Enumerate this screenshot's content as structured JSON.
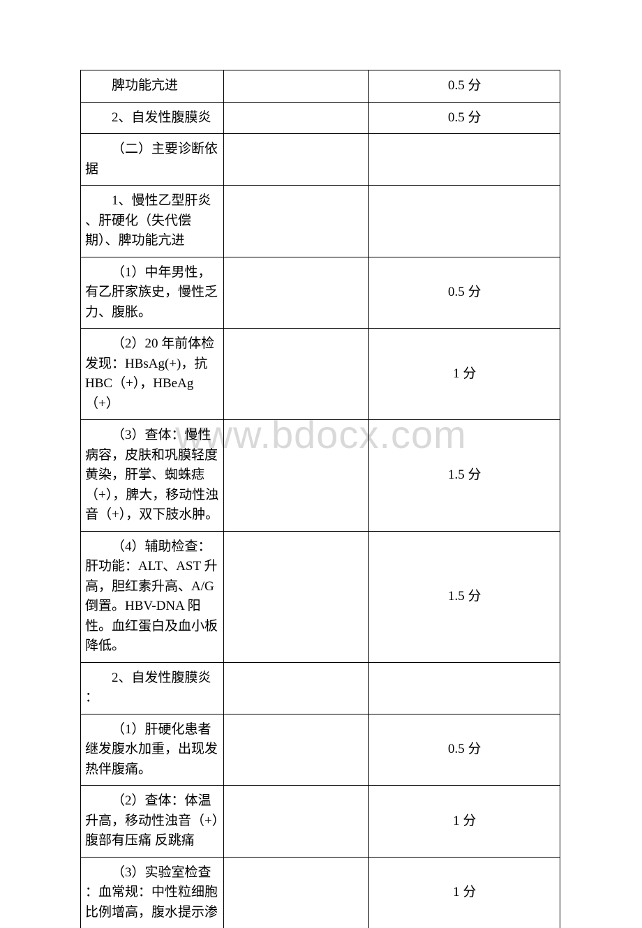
{
  "watermark": "www.bdocx.com",
  "table": {
    "columns": {
      "col1_width": 205,
      "col2_width": 209,
      "col3_width": 274
    },
    "rows": [
      {
        "col1": "脾功能亢进",
        "col1_class": "indent",
        "col2": "",
        "col3": "0.5 分"
      },
      {
        "col1": "2、自发性腹膜炎",
        "col1_class": "indent",
        "col2": "",
        "col3": "0.5 分"
      },
      {
        "col1_html": "<span style='display:inline-block;text-indent:2em;'>（二）主要诊断依</span>据",
        "col2": "",
        "col3": ""
      },
      {
        "col1_html": "<span style='display:inline-block;text-indent:2em;'>1、慢性乙型肝炎</span>、肝硬化（失代偿期）、脾功能亢进",
        "col2": "",
        "col3": ""
      },
      {
        "col1_html": "<span style='display:inline-block;text-indent:2em;'>（1）中年男性，</span>有乙肝家族史，慢性乏力、腹胀。",
        "col2": "",
        "col3": "0.5 分"
      },
      {
        "col1_html": "<span style='display:inline-block;text-indent:2em;'>（2）20 年前体检</span>发现：HBsAg(+)，抗HBC（+），HBeAg（+）",
        "col2": "",
        "col3": "1 分"
      },
      {
        "col1_html": "<span style='display:inline-block;text-indent:2em;'>（3）查体：慢性</span>病容，皮肤和巩膜轻度黄染，肝掌、蜘蛛痣（+），脾大，移动性浊音（+），双下肢水肿。",
        "col2": "",
        "col3": "1.5 分"
      },
      {
        "col1_html": "<span style='display:inline-block;text-indent:2em;'>（4）辅助检查：</span>肝功能：ALT、AST 升高，胆红素升高、A/G倒置。HBV-DNA 阳性。血红蛋白及血小板降低。",
        "col2": "",
        "col3": "1.5 分"
      },
      {
        "col1_html": "<span style='display:inline-block;text-indent:2em;'>2、自发性腹膜炎</span>：",
        "col2": "",
        "col3": ""
      },
      {
        "col1_html": "<span style='display:inline-block;text-indent:2em;'>（1）肝硬化患者</span>继发腹水加重，出现发热伴腹痛。",
        "col2": "",
        "col3": "0.5 分"
      },
      {
        "col1_html": "<span style='display:inline-block;text-indent:2em;'>（2）查体：体温</span>升高，移动性浊音（+）腹部有压痛 反跳痛",
        "col2": "",
        "col3": "1 分"
      },
      {
        "col1_html": "<span style='display:inline-block;text-indent:2em;'>（3）实验室检查</span>：血常规：中性粒细胞比例增高，腹水提示渗",
        "col2": "",
        "col3": "1 分",
        "no_bottom": true
      }
    ]
  }
}
